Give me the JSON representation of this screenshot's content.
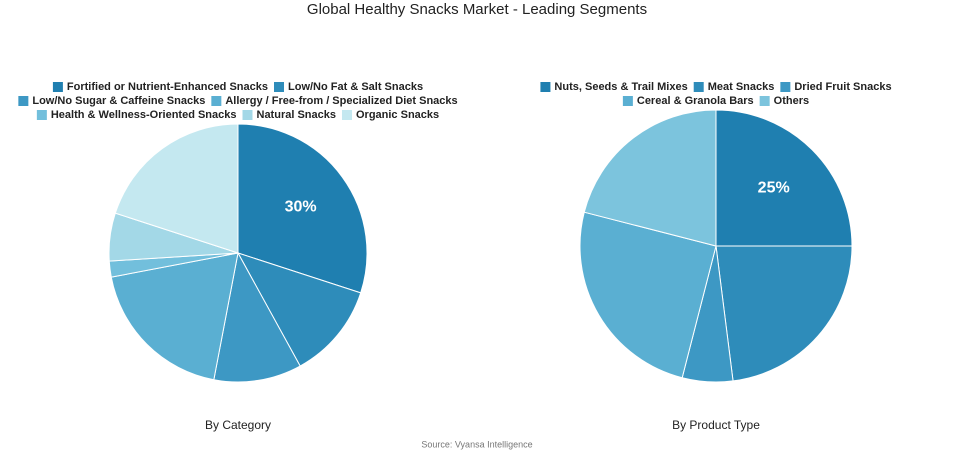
{
  "title": "Global Healthy Snacks Market - Leading Segments",
  "source": "Source: Vyansa Intelligence",
  "chart_data": [
    {
      "type": "pie",
      "title": "By Category",
      "categories": [
        "Fortified or Nutrient-Enhanced Snacks",
        "Low/No Fat & Salt Snacks",
        "Low/No Sugar & Caffeine Snacks",
        "Allergy / Free-from / Specialized Diet Snacks",
        "Health & Wellness-Oriented Snacks",
        "Natural Snacks",
        "Organic Snacks"
      ],
      "values": [
        30,
        12,
        11,
        19,
        2,
        6,
        20
      ],
      "value_labels": [
        "30%",
        null,
        null,
        null,
        null,
        null,
        null
      ],
      "colors": [
        "#1f7fb0",
        "#2e8cba",
        "#3d98c4",
        "#5aafd2",
        "#72bfdc",
        "#a3d8e7",
        "#c4e8f0"
      ]
    },
    {
      "type": "pie",
      "title": "By Product Type",
      "categories": [
        "Nuts, Seeds & Trail Mixes",
        "Meat Snacks",
        "Dried Fruit Snacks",
        "Cereal & Granola Bars",
        "Others"
      ],
      "values": [
        25,
        23,
        6,
        25,
        21
      ],
      "value_labels": [
        "25%",
        null,
        null,
        null,
        null
      ],
      "colors": [
        "#1f7fb0",
        "#2e8cba",
        "#3d98c4",
        "#5aafd2",
        "#7cc4dd"
      ]
    }
  ]
}
